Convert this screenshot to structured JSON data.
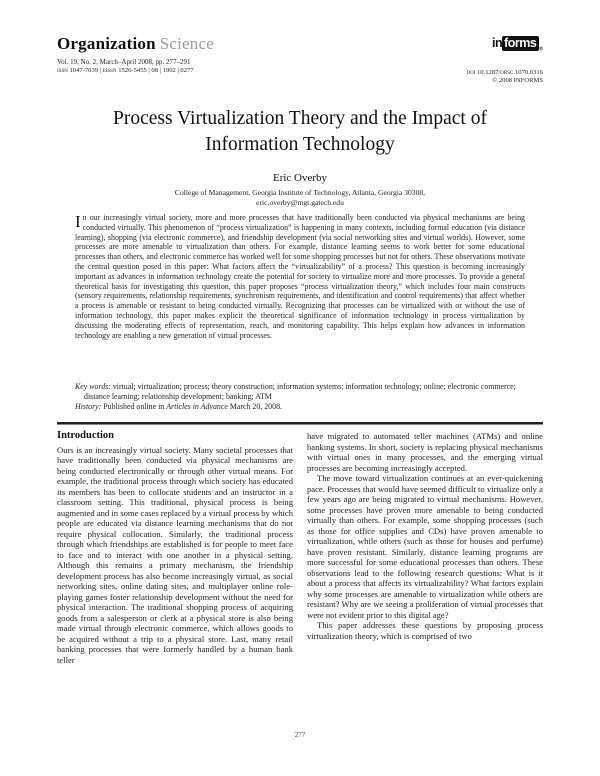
{
  "header": {
    "journal_bold": "Organization",
    "journal_light": "Science",
    "vol_line": "Vol. 19, No. 2, March–April 2008, pp. 277–291",
    "issn_line": "issn 1047-7039 | eissn 1526-5455 | 08 | 1902 | 0277",
    "logo_prefix": "in",
    "logo_box": "forms",
    "logo_reg": "®",
    "doi_line": "doi 10.1287/orsc.1070.0316",
    "copyright_line": "© 2008 INFORMS"
  },
  "title": "Process Virtualization Theory and the Impact of Information Technology",
  "author": "Eric Overby",
  "affiliation_line1": "College of Management, Georgia Institute of Technology, Atlanta, Georgia 30308,",
  "affiliation_line2": "eric.overby@mgt.gatech.edu",
  "abstract": {
    "dropcap": "I",
    "text": "n our increasingly virtual society, more and more processes that have traditionally been conducted via physical mechanisms are being conducted virtually. This phenomenon of “process virtualization” is happening in many contexts, including formal education (via distance learning), shopping (via electronic commerce), and friendship development (via social networking sites and virtual worlds). However, some processes are more amenable to virtualization than others. For example, distance learning seems to work better for some educational processes than others, and electronic commerce has worked well for some shopping processes but not for others. These observations motivate the central question posed in this paper: What factors affect the “virtualizability” of a process? This question is becoming increasingly important as advances in information technology create the potential for society to virtualize more and more processes. To provide a general theoretical basis for investigating this question, this paper proposes “process virtualization theory,” which includes four main constructs (sensory requirements, relationship requirements, synchronism requirements, and identification and control requirements) that affect whether a process is amenable or resistant to being conducted virtually. Recognizing that processes can be virtualized with or without the use of information technology, this paper makes explicit the theoretical significance of information technology in process virtualization by discussing the moderating effects of representation, reach, and monitoring capability. This helps explain how advances in information technology are enabling a new generation of virtual processes."
  },
  "keywords": {
    "label": "Key words:",
    "text": " virtual; virtualization; process; theory construction; information systems; information technology; online; electronic commerce; distance learning; relationship development; banking; ATM"
  },
  "history": {
    "label": "History:",
    "pre": " Published online in ",
    "italic": "Articles in Advance",
    "post": " March 20, 2008."
  },
  "body": {
    "intro_heading": "Introduction",
    "left_para1": "Ours is an increasingly virtual society. Many societal processes that have traditionally been conducted via physical mechanisms are being conducted electronically or through other virtual means. For example, the traditional process through which society has educated its members has been to collocate students and an instructor in a classroom setting. This traditional, physical process is being augmented and in some cases replaced by a virtual process by which people are educated via distance learning mechanisms that do not require physical collocation. Similarly, the traditional process through which friendships are established is for people to meet face to face and to interact with one another in a physical setting. Although this remains a primary mechanism, the friendship development process has also become increasingly virtual, as social networking sites, online dating sites, and multiplayer online role-playing games foster relationship development without the need for physical interaction. The traditional shopping process of acquiring goods from a salesperson or clerk at a physical store is also being made virtual through electronic commerce, which allows goods to be acquired without a trip to a physical store. Last, many retail banking processes that were formerly handled by a human bank teller",
    "right_para1": "have migrated to automated teller machines (ATMs) and online banking systems. In short, society is replacing physical mechanisms with virtual ones in many processes, and the emerging virtual processes are becoming increasingly accepted.",
    "right_para2": "The move toward virtualization continues at an ever-quickening pace. Processes that would have seemed difficult to virtualize only a few years ago are being migrated to virtual mechanisms. However, some processes have proven more amenable to being conducted virtually than others. For example, some shopping processes (such as those for office supplies and CDs) have proven amenable to virtualization, while others (such as those for houses and perfume) have proven resistant. Similarly, distance learning programs are more successful for some educational processes than others. These observations lead to the following research questions: What is it about a process that affects its virtualizability? What factors explain why some processes are amenable to virtualization while others are resistant? Why are we seeing a proliferation of virtual processes that were not evident prior to this digital age?",
    "right_para3": "This paper addresses these questions by proposing process virtualization theory, which is comprised of two"
  },
  "page_number": "277"
}
